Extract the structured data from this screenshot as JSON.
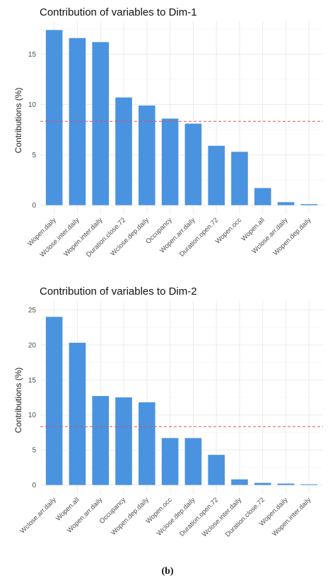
{
  "chart_data": [
    {
      "type": "bar",
      "title": "Contribution of variables to Dim-1",
      "ylabel": "Contributions (%)",
      "xlabel": "",
      "categories": [
        "Wopen.daily",
        "Wclose.inter.daily",
        "Wopen.inter.daily",
        "Duration.close.72",
        "Wclose.dep.daily",
        "Occupancy",
        "Wopen.arr.daily",
        "Duration.open.72",
        "Wopen.occ",
        "Wopen.all",
        "Wclose.arr.daily",
        "Wopen.dep.daily"
      ],
      "values": [
        17.4,
        16.6,
        16.2,
        10.7,
        9.9,
        8.6,
        8.1,
        5.9,
        5.3,
        1.7,
        0.3,
        0.1
      ],
      "reference_line": 8.33,
      "ylim": [
        0,
        17.4
      ],
      "yticks": [
        0,
        5,
        10,
        15
      ],
      "grid": true
    },
    {
      "type": "bar",
      "title": "Contribution of variables to Dim-2",
      "ylabel": "Contributions (%)",
      "xlabel": "",
      "categories": [
        "Wclose.arr.daily",
        "Wopen.all",
        "Wopen.arr.daily",
        "Occupancy",
        "Wopen.dep.daily",
        "Wopen.occ",
        "Wclose.dep.daily",
        "Duration.open.72",
        "Wclose.inter.daily",
        "Duration.close.72",
        "Wopen.daily",
        "Wopen.inter.daily"
      ],
      "values": [
        24.0,
        20.3,
        12.7,
        12.5,
        11.8,
        6.7,
        6.7,
        4.3,
        0.8,
        0.3,
        0.2,
        0.1
      ],
      "reference_line": 8.33,
      "ylim": [
        0,
        25
      ],
      "yticks": [
        0,
        5,
        10,
        15,
        20,
        25
      ],
      "grid": true
    }
  ],
  "caption": "(b)",
  "colors": {
    "bar": "#4a93e0",
    "reference": "#e05050",
    "grid": "#ebebeb"
  }
}
